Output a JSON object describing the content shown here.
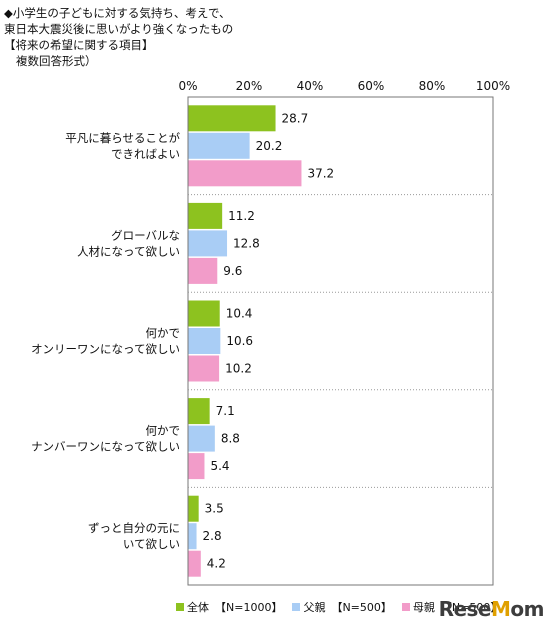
{
  "title": {
    "line1": "◆小学生の子どもに対する気持ち、考えで、",
    "line2": "東日本大震災後に思いがより強くなったもの",
    "line3": "【将来の希望に関する項目】",
    "line4": "複数回答形式）"
  },
  "logo_text": "ReseMom",
  "chart_data": {
    "type": "bar",
    "orientation": "horizontal",
    "categories": [
      [
        "平凡に暮らせることが",
        "できればよい"
      ],
      [
        "グローバルな",
        "人材になって欲しい"
      ],
      [
        "何かで",
        "オンリーワンになって欲しい"
      ],
      [
        "何かで",
        "ナンバーワンになって欲しい"
      ],
      [
        "ずっと自分の元に",
        "いて欲しい"
      ]
    ],
    "series": [
      {
        "name": "全体",
        "sample": "【N=1000】",
        "color": "#8dc21f",
        "values": [
          28.7,
          11.2,
          10.4,
          7.1,
          3.5
        ]
      },
      {
        "name": "父親",
        "sample": "【N=500】",
        "color": "#a9cdf5",
        "values": [
          20.2,
          12.8,
          10.6,
          8.8,
          2.8
        ]
      },
      {
        "name": "母親",
        "sample": "【N=500】",
        "color": "#f29cc9",
        "values": [
          37.2,
          9.6,
          10.2,
          5.4,
          4.2
        ]
      }
    ],
    "xlim": [
      0,
      100
    ],
    "xticks": [
      "0%",
      "20%",
      "40%",
      "60%",
      "80%",
      "100%"
    ],
    "xlabel": "",
    "ylabel": ""
  }
}
